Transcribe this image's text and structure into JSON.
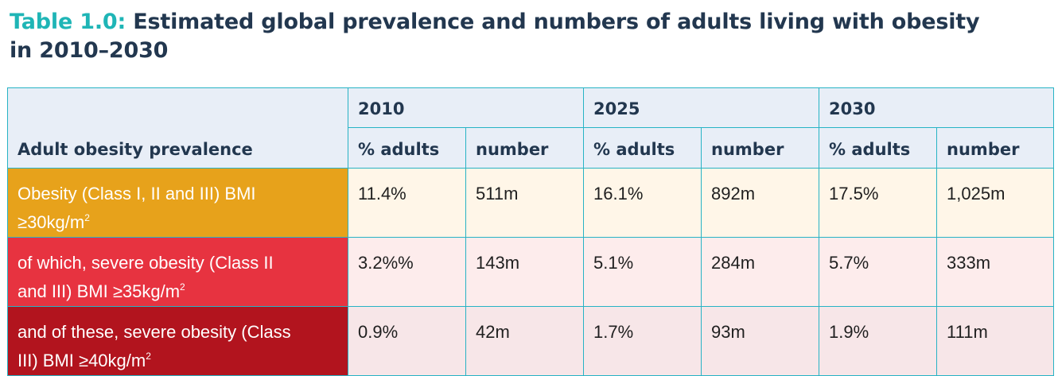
{
  "title": {
    "prefix": "Table 1.0:",
    "line1": " Estimated global prevalence and numbers of adults living with obesity",
    "line2": "in 2010–2030"
  },
  "table": {
    "years": [
      "2010",
      "2025",
      "2030"
    ],
    "row_header_label": "Adult obesity prevalence",
    "sub_headers": [
      "% adults",
      "number",
      "% adults",
      "number",
      "% adults",
      "number"
    ],
    "rows": [
      {
        "label_a": "Obesity (Class I, II and III) BMI",
        "label_b": "≥30kg/m",
        "label_sup": "2",
        "values": [
          "11.4%",
          "511m",
          "16.1%",
          "892m",
          "17.5%",
          "1,025m"
        ]
      },
      {
        "label_a": "of which, severe obesity (Class II",
        "label_b": "and III) BMI ≥35kg/m",
        "label_sup": "2",
        "values": [
          "3.2%%",
          "143m",
          "5.1%",
          "284m",
          "5.7%",
          "333m"
        ]
      },
      {
        "label_a": "and of these, severe obesity (Class",
        "label_b": "III) BMI ≥40kg/m",
        "label_sup": "2",
        "values": [
          "0.9%",
          "42m",
          "1.7%",
          "93m",
          "1.9%",
          "111m"
        ]
      }
    ]
  },
  "colors": {
    "title_accent": "#1fb5b6",
    "title_text": "#22374f",
    "border": "#27b3c5",
    "header_bg": "#e8eef7",
    "row1_label": "#e7a21b",
    "row1_bg": "#fff6e8",
    "row2_label": "#e73340",
    "row2_bg": "#fdecec",
    "row3_label": "#b2141e",
    "row3_bg": "#f7e6e8"
  }
}
